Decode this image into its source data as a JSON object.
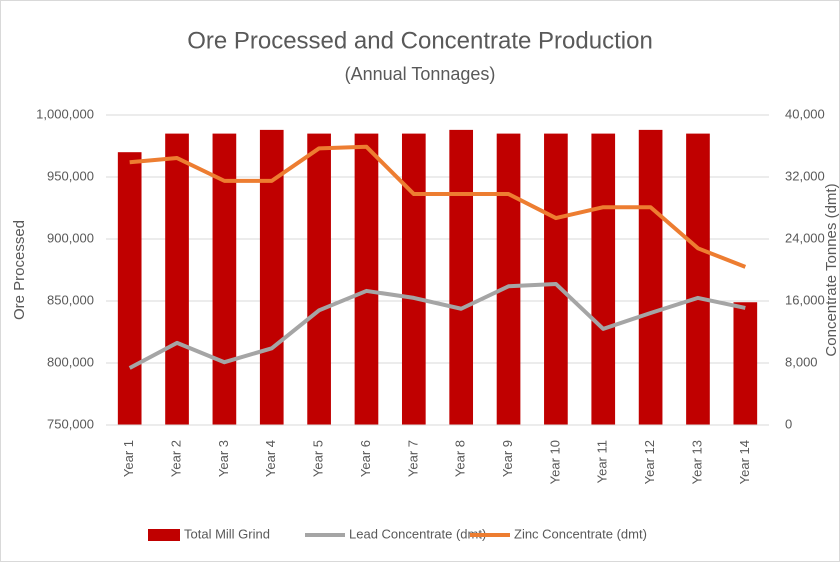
{
  "chart_data": {
    "type": "bar-line",
    "title": "Ore Processed and Concentrate Production",
    "subtitle": "(Annual Tonnages)",
    "y_label": "Ore Processed",
    "y2_label": "Concentrate Tonnes (dmt)",
    "categories": [
      "Year 1",
      "Year 2",
      "Year 3",
      "Year 4",
      "Year 5",
      "Year 6",
      "Year 7",
      "Year 8",
      "Year 9",
      "Year 10",
      "Year 11",
      "Year 12",
      "Year 13",
      "Year 14"
    ],
    "series": [
      {
        "name": "Total Mill Grind",
        "type": "bar",
        "color": "#c00000",
        "axis": "y",
        "values": [
          970000,
          985000,
          985000,
          988000,
          985000,
          985000,
          985000,
          988000,
          985000,
          985000,
          985000,
          988000,
          985000,
          849000
        ]
      },
      {
        "name": "Lead Concentrate (dmt)",
        "type": "line",
        "color": "#a5a5a5",
        "axis": "y2",
        "values": [
          7350,
          10600,
          8100,
          9900,
          14800,
          17300,
          16400,
          15000,
          17900,
          18200,
          12400,
          14450,
          16400,
          15100
        ]
      },
      {
        "name": "Zinc Concentrate (dmt)",
        "type": "line",
        "color": "#ed7d31",
        "axis": "y2",
        "values": [
          33900,
          34450,
          31500,
          31500,
          35700,
          35900,
          29800,
          29800,
          29800,
          26700,
          28100,
          28100,
          22800,
          20400
        ]
      }
    ],
    "ylim": [
      750000,
      1000000
    ],
    "yticks": [
      {
        "value": 750000,
        "label": "750,000"
      },
      {
        "value": 800000,
        "label": "800,000"
      },
      {
        "value": 850000,
        "label": "850,000"
      },
      {
        "value": 900000,
        "label": "900,000"
      },
      {
        "value": 950000,
        "label": "950,000"
      },
      {
        "value": 1000000,
        "label": "1,000,000"
      }
    ],
    "y2lim": [
      0,
      40000
    ],
    "y2ticks": [
      0,
      {
        "value": 8000,
        "label": "8,000"
      },
      {
        "value": 16000,
        "label": "16,000"
      },
      {
        "value": 24000,
        "label": "24,000"
      },
      {
        "value": 32000,
        "label": "32,000"
      },
      {
        "value": 40000,
        "label": "40,000"
      }
    ],
    "grid": true,
    "legend": "bottom"
  }
}
